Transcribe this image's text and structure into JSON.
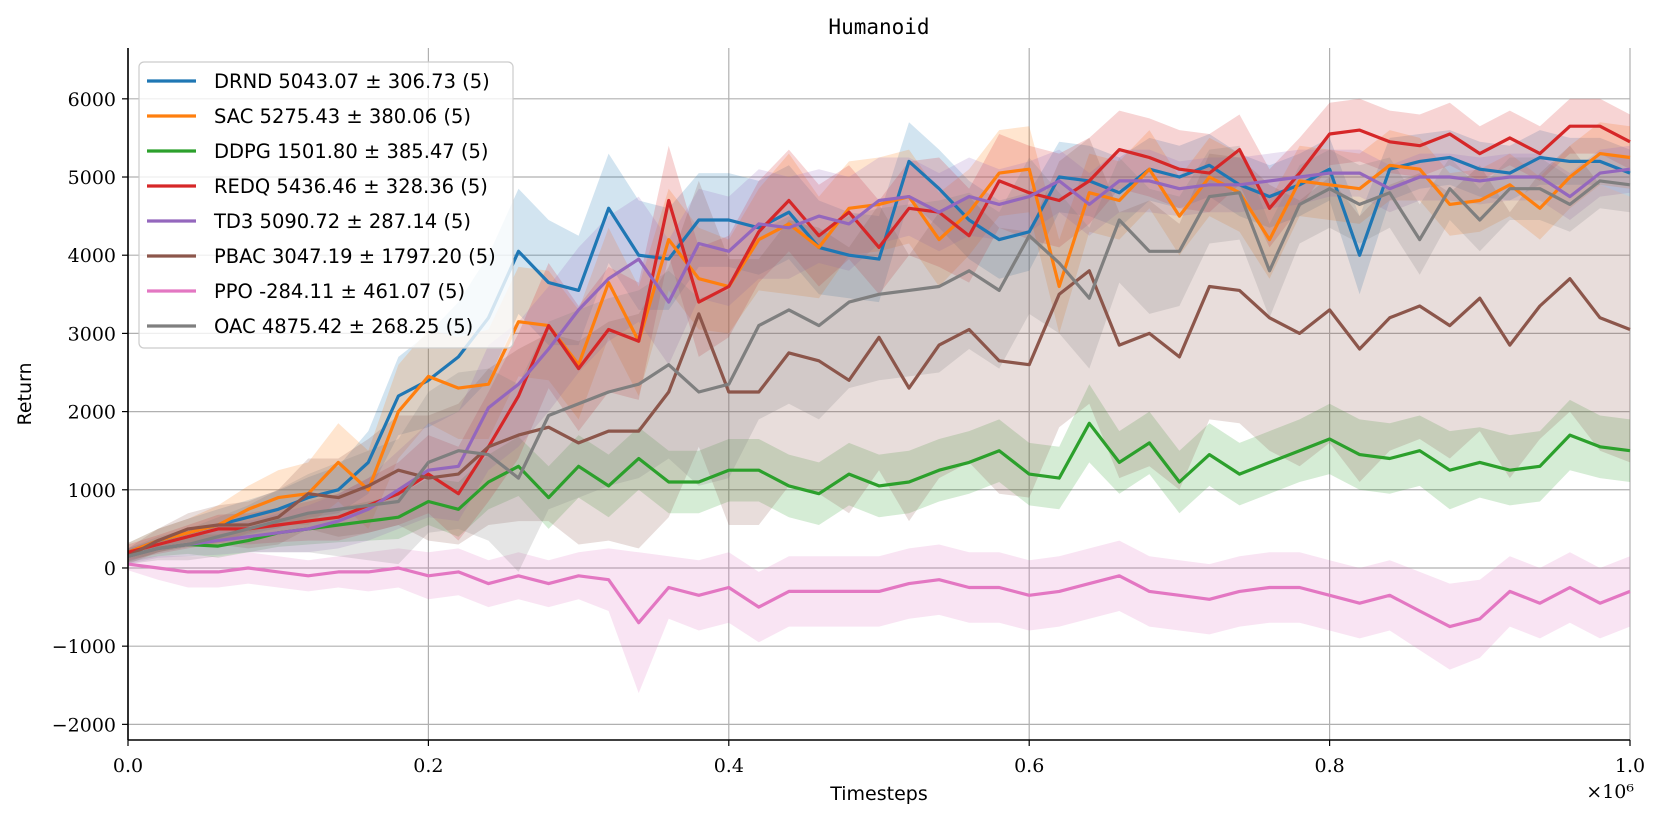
{
  "chart_data": {
    "type": "line",
    "title": "Humanoid",
    "xlabel": "Timesteps",
    "ylabel": "Return",
    "x_multiplier_label": "×10⁶",
    "xlim": [
      0,
      1.0
    ],
    "ylim": [
      -2200,
      6650
    ],
    "xticks": [
      0.0,
      0.2,
      0.4,
      0.6,
      0.8,
      1.0
    ],
    "xtick_labels": [
      "0.0",
      "0.2",
      "0.4",
      "0.6",
      "0.8",
      "1.0"
    ],
    "yticks": [
      -2000,
      -1000,
      0,
      1000,
      2000,
      3000,
      4000,
      5000,
      6000
    ],
    "ytick_labels": [
      "−2000",
      "−1000",
      "0",
      "1000",
      "2000",
      "3000",
      "4000",
      "5000",
      "6000"
    ],
    "grid": true,
    "legend_position": "top-left",
    "x": [
      0.0,
      0.02,
      0.04,
      0.06,
      0.08,
      0.1,
      0.12,
      0.14,
      0.16,
      0.18,
      0.2,
      0.22,
      0.24,
      0.26,
      0.28,
      0.3,
      0.32,
      0.34,
      0.36,
      0.38,
      0.4,
      0.42,
      0.44,
      0.46,
      0.48,
      0.5,
      0.52,
      0.54,
      0.56,
      0.58,
      0.6,
      0.62,
      0.64,
      0.66,
      0.68,
      0.7,
      0.72,
      0.74,
      0.76,
      0.78,
      0.8,
      0.82,
      0.84,
      0.86,
      0.88,
      0.9,
      0.92,
      0.94,
      0.96,
      0.98,
      1.0
    ],
    "series": [
      {
        "name": "DRND",
        "legend": "DRND 5043.07 ± 306.73 (5)",
        "color": "#1f77b4",
        "values": [
          200,
          350,
          450,
          550,
          650,
          750,
          900,
          1000,
          1350,
          2200,
          2400,
          2700,
          3200,
          4050,
          3650,
          3550,
          4600,
          4000,
          3950,
          4450,
          4450,
          4350,
          4550,
          4100,
          4000,
          3950,
          5200,
          4850,
          4450,
          4200,
          4300,
          5000,
          4950,
          4800,
          5100,
          5000,
          5150,
          4900,
          4750,
          4900,
          5100,
          4000,
          5100,
          5200,
          5250,
          5100,
          5050,
          5250,
          5200,
          5200,
          5050
        ],
        "spread": [
          120,
          150,
          180,
          200,
          220,
          240,
          260,
          300,
          400,
          500,
          600,
          700,
          800,
          800,
          800,
          700,
          700,
          700,
          650,
          600,
          600,
          600,
          600,
          600,
          550,
          550,
          500,
          500,
          500,
          500,
          500,
          450,
          450,
          450,
          400,
          400,
          400,
          400,
          400,
          400,
          400,
          500,
          400,
          350,
          350,
          350,
          350,
          350,
          300,
          300,
          300
        ]
      },
      {
        "name": "SAC",
        "legend": "SAC 5275.43 ± 380.06 (5)",
        "color": "#ff7f0e",
        "values": [
          200,
          350,
          450,
          550,
          750,
          900,
          950,
          1350,
          1000,
          2000,
          2450,
          2300,
          2350,
          3150,
          3100,
          2600,
          3650,
          2900,
          4200,
          3700,
          3600,
          4200,
          4400,
          4100,
          4600,
          4650,
          4750,
          4200,
          4550,
          5050,
          5100,
          3600,
          4800,
          4700,
          5100,
          4500,
          5000,
          4800,
          4200,
          4950,
          4900,
          4850,
          5150,
          5100,
          4650,
          4700,
          4900,
          4600,
          5000,
          5300,
          5250
        ],
        "spread": [
          120,
          150,
          180,
          250,
          300,
          350,
          400,
          500,
          500,
          600,
          600,
          650,
          700,
          700,
          700,
          700,
          700,
          700,
          650,
          650,
          600,
          650,
          900,
          650,
          600,
          600,
          600,
          600,
          550,
          550,
          550,
          600,
          500,
          500,
          500,
          500,
          500,
          500,
          500,
          450,
          450,
          450,
          450,
          400,
          400,
          400,
          400,
          400,
          400,
          400,
          400
        ]
      },
      {
        "name": "DDPG",
        "legend": "DDPG 1501.80 ± 385.47 (5)",
        "color": "#2ca02c",
        "values": [
          150,
          250,
          300,
          280,
          350,
          450,
          500,
          550,
          600,
          650,
          850,
          750,
          1100,
          1300,
          900,
          1300,
          1050,
          1400,
          1100,
          1100,
          1250,
          1250,
          1050,
          950,
          1200,
          1050,
          1100,
          1250,
          1350,
          1500,
          1200,
          1150,
          1850,
          1350,
          1600,
          1100,
          1450,
          1200,
          1350,
          1500,
          1650,
          1450,
          1400,
          1500,
          1250,
          1350,
          1250,
          1300,
          1700,
          1550,
          1500
        ],
        "spread": [
          80,
          100,
          120,
          150,
          150,
          180,
          200,
          220,
          250,
          280,
          300,
          350,
          350,
          380,
          400,
          400,
          400,
          400,
          400,
          400,
          400,
          400,
          400,
          400,
          400,
          400,
          400,
          400,
          400,
          400,
          400,
          400,
          500,
          400,
          400,
          400,
          400,
          400,
          400,
          400,
          450,
          450,
          450,
          450,
          500,
          450,
          450,
          450,
          450,
          400,
          400
        ]
      },
      {
        "name": "REDQ",
        "legend": "REDQ 5436.46 ± 328.36 (5)",
        "color": "#d62728",
        "values": [
          200,
          300,
          400,
          500,
          500,
          550,
          600,
          650,
          800,
          950,
          1200,
          950,
          1550,
          2200,
          3100,
          2550,
          3050,
          2900,
          4700,
          3400,
          3600,
          4300,
          4700,
          4250,
          4550,
          4100,
          4600,
          4550,
          4250,
          4950,
          4800,
          4700,
          4950,
          5350,
          5250,
          5100,
          5050,
          5350,
          4600,
          5050,
          5550,
          5600,
          5450,
          5400,
          5550,
          5300,
          5500,
          5300,
          5650,
          5650,
          5450
        ],
        "spread": [
          100,
          120,
          150,
          180,
          200,
          220,
          250,
          300,
          350,
          400,
          500,
          600,
          700,
          800,
          800,
          800,
          800,
          750,
          700,
          700,
          650,
          650,
          650,
          650,
          600,
          600,
          600,
          700,
          600,
          600,
          600,
          600,
          550,
          500,
          500,
          500,
          500,
          450,
          500,
          450,
          400,
          400,
          400,
          400,
          400,
          350,
          350,
          350,
          350,
          350,
          350
        ]
      },
      {
        "name": "TD3",
        "legend": "TD3 5090.72 ± 287.14 (5)",
        "color": "#9467bd",
        "values": [
          150,
          250,
          300,
          350,
          400,
          450,
          500,
          600,
          750,
          1000,
          1250,
          1300,
          2050,
          2350,
          2800,
          3300,
          3700,
          3950,
          3400,
          4150,
          4050,
          4400,
          4350,
          4500,
          4400,
          4700,
          4750,
          4550,
          4750,
          4650,
          4750,
          4950,
          4650,
          4950,
          4950,
          4850,
          4900,
          4900,
          4950,
          5000,
          5050,
          5050,
          4850,
          5000,
          5000,
          4950,
          5000,
          5000,
          4750,
          5050,
          5100
        ],
        "spread": [
          100,
          120,
          150,
          180,
          200,
          250,
          300,
          350,
          400,
          500,
          600,
          700,
          800,
          800,
          800,
          800,
          800,
          800,
          800,
          700,
          700,
          700,
          650,
          600,
          600,
          550,
          500,
          500,
          500,
          450,
          450,
          400,
          400,
          400,
          400,
          350,
          350,
          350,
          350,
          350,
          300,
          300,
          300,
          300,
          300,
          300,
          300,
          300,
          300,
          300,
          300
        ]
      },
      {
        "name": "PBAC",
        "legend": "PBAC 3047.19 ± 1797.20 (5)",
        "color": "#8c564b",
        "values": [
          150,
          350,
          500,
          550,
          550,
          650,
          950,
          900,
          1050,
          1250,
          1150,
          1200,
          1550,
          1700,
          1800,
          1600,
          1750,
          1750,
          2250,
          3250,
          2250,
          2250,
          2750,
          2650,
          2400,
          2950,
          2300,
          2850,
          3050,
          2650,
          2600,
          3500,
          3800,
          2850,
          3000,
          2700,
          3600,
          3550,
          3200,
          3000,
          3300,
          2800,
          3200,
          3350,
          3100,
          3450,
          2850,
          3350,
          3700,
          3200,
          3050
        ],
        "spread": [
          100,
          150,
          200,
          250,
          300,
          350,
          450,
          500,
          600,
          700,
          800,
          900,
          1000,
          1100,
          1200,
          1300,
          1400,
          1500,
          1600,
          1700,
          1700,
          1700,
          1700,
          1700,
          1700,
          1700,
          1700,
          1700,
          1700,
          1700,
          1700,
          1700,
          1700,
          1700,
          1700,
          1700,
          1700,
          1700,
          1700,
          1700,
          1700,
          1700,
          1700,
          1700,
          1700,
          1700,
          1700,
          1700,
          1700,
          1700,
          1700
        ]
      },
      {
        "name": "PPO",
        "legend": "PPO -284.11 ± 461.07 (5)",
        "color": "#e377c2",
        "values": [
          50,
          0,
          -50,
          -50,
          0,
          -50,
          -100,
          -50,
          -50,
          0,
          -100,
          -50,
          -200,
          -100,
          -200,
          -100,
          -150,
          -700,
          -250,
          -350,
          -250,
          -500,
          -300,
          -300,
          -300,
          -300,
          -200,
          -150,
          -250,
          -250,
          -350,
          -300,
          -200,
          -100,
          -300,
          -350,
          -400,
          -300,
          -250,
          -250,
          -350,
          -450,
          -350,
          -550,
          -750,
          -650,
          -300,
          -450,
          -250,
          -450,
          -300
        ],
        "spread": [
          80,
          150,
          200,
          200,
          200,
          200,
          200,
          200,
          250,
          250,
          300,
          300,
          300,
          300,
          300,
          300,
          400,
          900,
          400,
          450,
          450,
          450,
          450,
          450,
          450,
          450,
          450,
          450,
          450,
          450,
          450,
          450,
          450,
          450,
          450,
          450,
          450,
          450,
          450,
          450,
          450,
          450,
          450,
          500,
          550,
          500,
          450,
          450,
          450,
          450,
          450
        ]
      },
      {
        "name": "OAC",
        "legend": "OAC 4875.42 ± 268.25 (5)",
        "color": "#7f7f7f",
        "values": [
          150,
          250,
          300,
          400,
          500,
          600,
          700,
          750,
          800,
          850,
          1350,
          1500,
          1450,
          1150,
          1950,
          2100,
          2250,
          2350,
          2600,
          2250,
          2350,
          3100,
          3300,
          3100,
          3400,
          3500,
          3550,
          3600,
          3800,
          3550,
          4250,
          3900,
          3450,
          4450,
          4050,
          4050,
          4750,
          4800,
          3800,
          4650,
          4850,
          4650,
          4800,
          4200,
          4850,
          4450,
          4850,
          4850,
          4650,
          4950,
          4900
        ],
        "spread": [
          100,
          150,
          200,
          250,
          300,
          400,
          500,
          600,
          700,
          800,
          900,
          1000,
          1100,
          1200,
          1200,
          1200,
          1200,
          1200,
          1200,
          1200,
          1200,
          1200,
          1200,
          1200,
          1100,
          1100,
          1100,
          1100,
          1000,
          1000,
          1000,
          900,
          900,
          800,
          800,
          700,
          600,
          600,
          600,
          500,
          500,
          500,
          450,
          450,
          400,
          400,
          400,
          400,
          350,
          350,
          350
        ]
      }
    ]
  }
}
